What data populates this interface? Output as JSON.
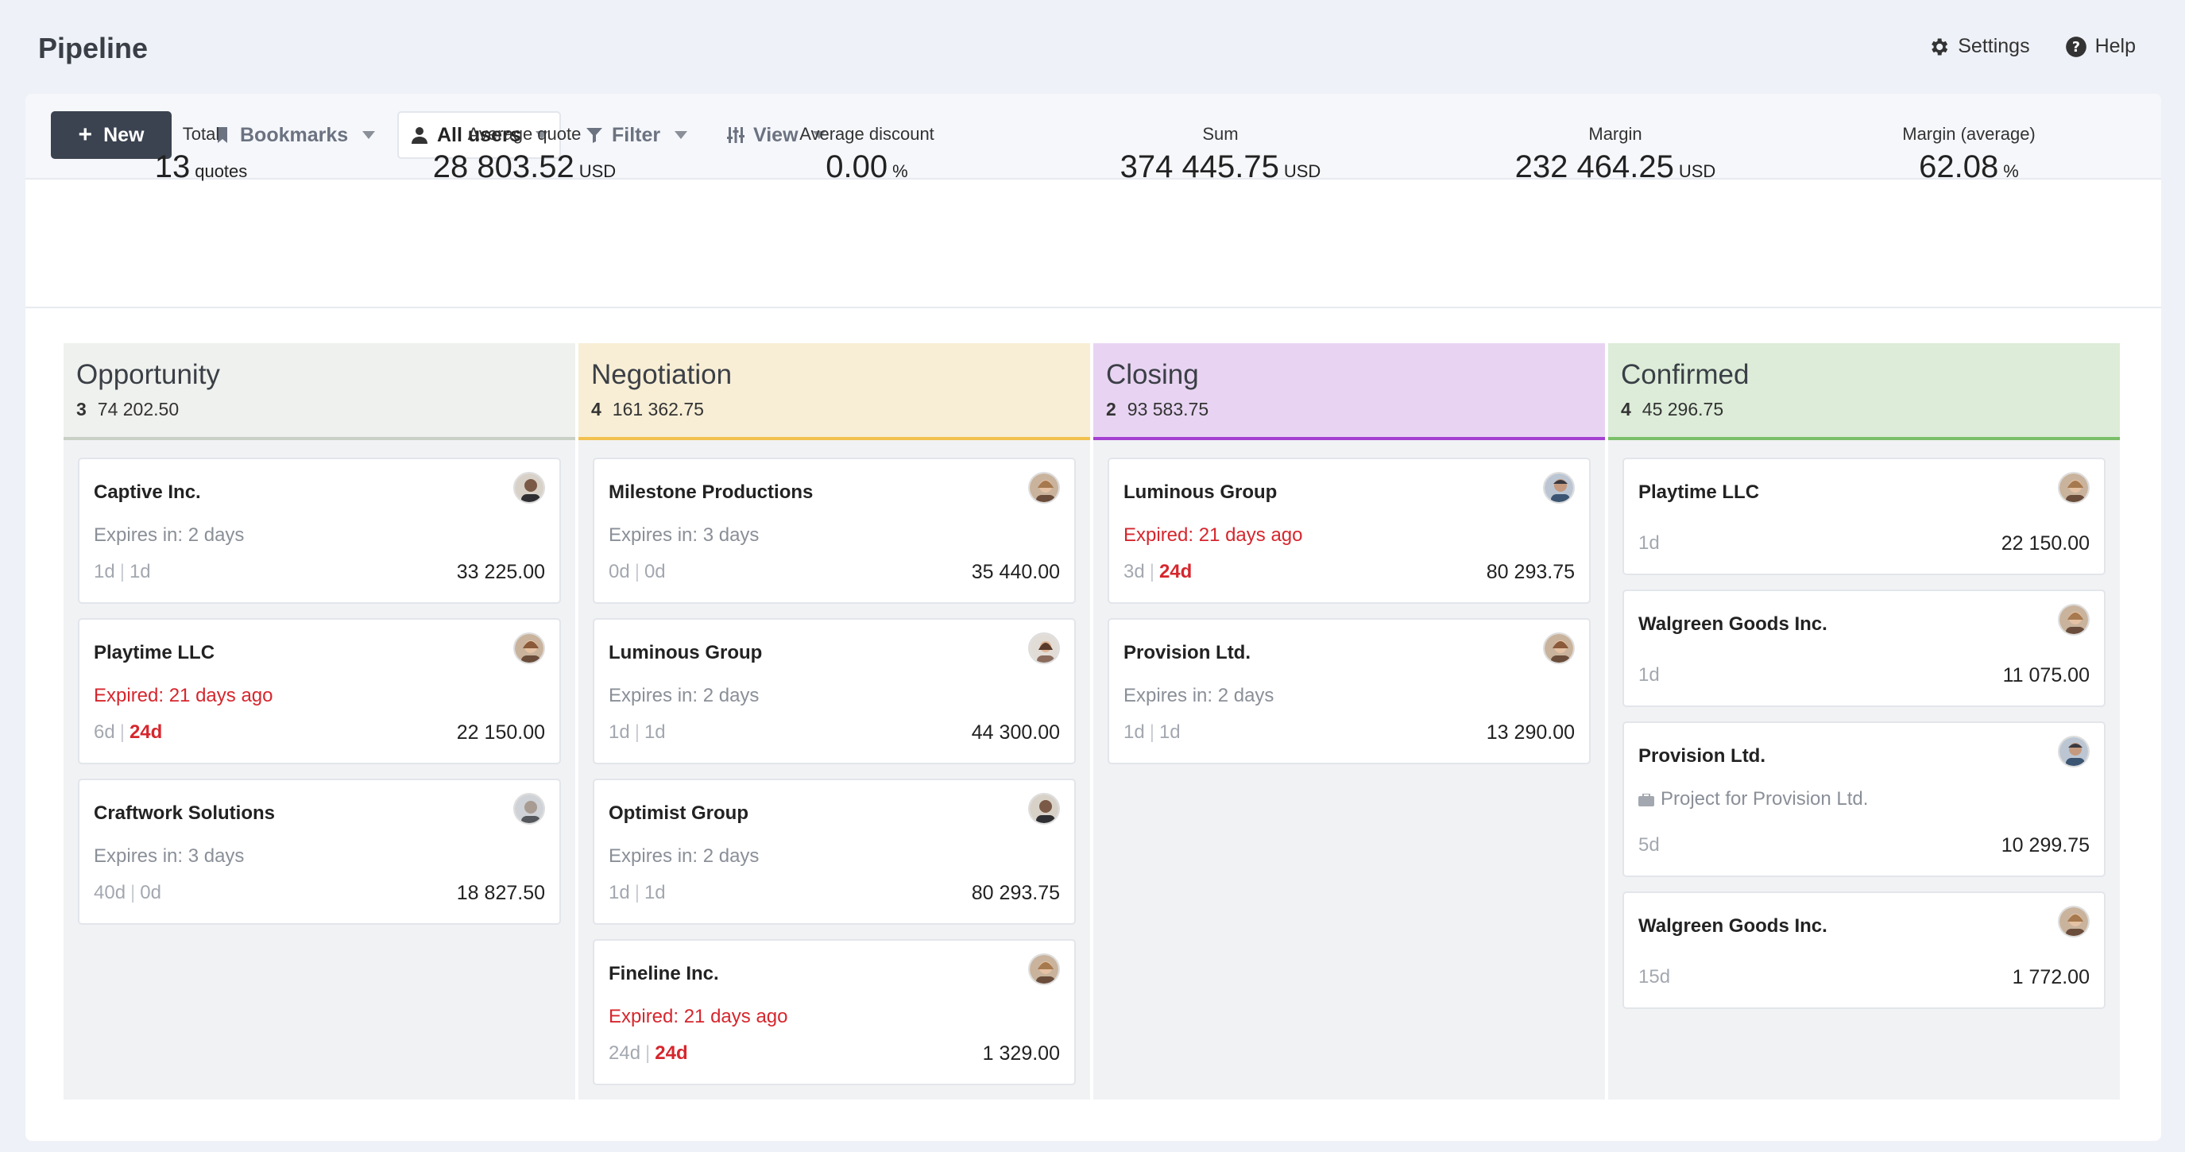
{
  "page": {
    "title": "Pipeline"
  },
  "top_actions": {
    "settings": "Settings",
    "help": "Help"
  },
  "toolbar": {
    "new_label": "New",
    "bookmarks_label": "Bookmarks",
    "users_label": "All users",
    "filter_label": "Filter",
    "view_label": "View"
  },
  "stats": {
    "total": {
      "label": "Total",
      "value": "13",
      "unit": "quotes"
    },
    "average_quote": {
      "label": "Average quote",
      "value": "28 803.52",
      "unit": "USD"
    },
    "average_discount": {
      "label": "Average discount",
      "value": "0.00",
      "unit": "%"
    },
    "sum": {
      "label": "Sum",
      "value": "374 445.75",
      "unit": "USD"
    },
    "margin": {
      "label": "Margin",
      "value": "232 464.25",
      "unit": "USD"
    },
    "margin_average": {
      "label": "Margin (average)",
      "value": "62.08",
      "unit": "%"
    }
  },
  "colors": {
    "opportunity_bg": "#eff1ee",
    "opportunity_line": "#c9d0c6",
    "negotiation_bg": "#f7eed5",
    "negotiation_line": "#f2c14e",
    "closing_bg": "#e8d4f2",
    "closing_line": "#a43fd1",
    "confirmed_bg": "#dcecd8",
    "confirmed_line": "#7bbf6a",
    "expired_text": "#d6262d"
  },
  "columns": [
    {
      "title": "Opportunity",
      "count": "3",
      "sum": "74 202.50",
      "cards": [
        {
          "company": "Captive Inc.",
          "status": "Expires in: 2 days",
          "expired": false,
          "days_a": "1d",
          "days_b": "1d",
          "days_b_red": false,
          "amount": "33 225.00"
        },
        {
          "company": "Playtime LLC",
          "status": "Expired: 21 days ago",
          "expired": true,
          "days_a": "6d",
          "days_b": "24d",
          "days_b_red": true,
          "amount": "22 150.00"
        },
        {
          "company": "Craftwork Solutions",
          "status": "Expires in: 3 days",
          "expired": false,
          "days_a": "40d",
          "days_b": "0d",
          "days_b_red": false,
          "amount": "18 827.50"
        }
      ]
    },
    {
      "title": "Negotiation",
      "count": "4",
      "sum": "161 362.75",
      "cards": [
        {
          "company": "Milestone Productions",
          "status": "Expires in: 3 days",
          "expired": false,
          "days_a": "0d",
          "days_b": "0d",
          "days_b_red": false,
          "amount": "35 440.00"
        },
        {
          "company": "Luminous Group",
          "status": "Expires in: 2 days",
          "expired": false,
          "days_a": "1d",
          "days_b": "1d",
          "days_b_red": false,
          "amount": "44 300.00"
        },
        {
          "company": "Optimist Group",
          "status": "Expires in: 2 days",
          "expired": false,
          "days_a": "1d",
          "days_b": "1d",
          "days_b_red": false,
          "amount": "80 293.75"
        },
        {
          "company": "Fineline Inc.",
          "status": "Expired: 21 days ago",
          "expired": true,
          "days_a": "24d",
          "days_b": "24d",
          "days_b_red": true,
          "amount": "1 329.00"
        }
      ]
    },
    {
      "title": "Closing",
      "count": "2",
      "sum": "93 583.75",
      "cards": [
        {
          "company": "Luminous Group",
          "status": "Expired: 21 days ago",
          "expired": true,
          "days_a": "3d",
          "days_b": "24d",
          "days_b_red": true,
          "amount": "80 293.75"
        },
        {
          "company": "Provision Ltd.",
          "status": "Expires in: 2 days",
          "expired": false,
          "days_a": "1d",
          "days_b": "1d",
          "days_b_red": false,
          "amount": "13 290.00"
        }
      ]
    },
    {
      "title": "Confirmed",
      "count": "4",
      "sum": "45 296.75",
      "cards": [
        {
          "company": "Playtime LLC",
          "days_a": "1d",
          "amount": "22 150.00"
        },
        {
          "company": "Walgreen Goods Inc.",
          "days_a": "1d",
          "amount": "11 075.00"
        },
        {
          "company": "Provision Ltd.",
          "project": "Project for Provision Ltd.",
          "days_a": "5d",
          "amount": "10 299.75"
        },
        {
          "company": "Walgreen Goods Inc.",
          "days_a": "15d",
          "amount": "1 772.00"
        }
      ]
    }
  ]
}
